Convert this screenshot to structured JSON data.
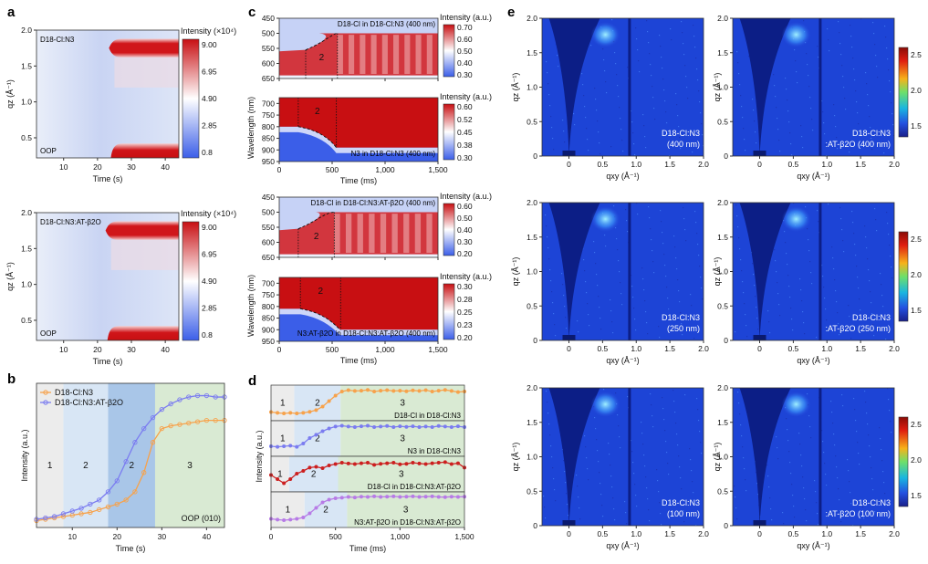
{
  "panel_labels": {
    "a": "a",
    "b": "b",
    "c": "c",
    "d": "d",
    "e": "e"
  },
  "colors": {
    "orange": "#f7a24b",
    "purple": "#7b7cf0",
    "red": "#cc1f1f",
    "violet": "#b77be6",
    "region1": "#ececec",
    "region2": "#d8e6f5",
    "region2b": "#a9c6e8",
    "region3": "#d9ead3"
  },
  "chart_data": [
    {
      "id": "a-top",
      "type": "heatmap",
      "label": "D18-Cl:N3",
      "corner_label": "OOP",
      "xlabel": "Time (s)",
      "ylabel": "q_z (Å⁻¹)",
      "xlim": [
        2,
        44
      ],
      "ylim": [
        0.22,
        2.0
      ],
      "xticks": [
        10,
        20,
        30,
        40
      ],
      "yticks": [
        0.5,
        1.0,
        1.5,
        2.0
      ],
      "colorbar": {
        "title": "Intensity (×10⁴)",
        "ticks": [
          "9.00",
          "6.95",
          "4.90",
          "2.85",
          "0.8"
        ],
        "range": [
          0.8,
          9.0
        ]
      },
      "features": [
        {
          "q_center": 1.75,
          "onset_s": 25
        },
        {
          "q_center": 0.3,
          "onset_s": 25
        }
      ]
    },
    {
      "id": "a-bottom",
      "type": "heatmap",
      "label": "D18-Cl:N3:AT-β2O",
      "corner_label": "OOP",
      "xlabel": "Time (s)",
      "ylabel": "q_z (Å⁻¹)",
      "xlim": [
        2,
        44
      ],
      "ylim": [
        0.22,
        2.0
      ],
      "xticks": [
        10,
        20,
        30,
        40
      ],
      "yticks": [
        0.5,
        1.0,
        1.5,
        2.0
      ],
      "colorbar": {
        "title": "Intensity (×10⁴)",
        "ticks": [
          "9.00",
          "6.95",
          "4.90",
          "2.85",
          "0.8"
        ],
        "range": [
          0.8,
          9.0
        ]
      },
      "features": [
        {
          "q_center": 1.75,
          "onset_s": 24
        },
        {
          "q_center": 0.3,
          "onset_s": 24
        }
      ]
    },
    {
      "id": "b",
      "type": "line",
      "xlabel": "Time (s)",
      "ylabel": "Intensity (a.u.)",
      "xlim": [
        2,
        44
      ],
      "xticks": [
        10,
        20,
        30,
        40
      ],
      "corner_label": "OOP (010)",
      "regions": [
        {
          "label": "1",
          "x": [
            2,
            8
          ]
        },
        {
          "label": "2",
          "x": [
            8,
            18
          ]
        },
        {
          "label": "2",
          "x": [
            18,
            28.5
          ]
        },
        {
          "label": "3",
          "x": [
            28.5,
            44
          ]
        }
      ],
      "series": [
        {
          "name": "D18-Cl:N3",
          "color": "#f7a24b",
          "x": [
            2,
            4,
            6,
            8,
            10,
            12,
            14,
            16,
            18,
            20,
            22,
            24,
            26,
            28,
            30,
            32,
            34,
            36,
            38,
            40,
            42,
            44
          ],
          "y": [
            0.05,
            0.06,
            0.07,
            0.08,
            0.09,
            0.1,
            0.11,
            0.13,
            0.15,
            0.17,
            0.2,
            0.26,
            0.4,
            0.62,
            0.72,
            0.74,
            0.75,
            0.76,
            0.77,
            0.78,
            0.78,
            0.78
          ]
        },
        {
          "name": "D18-Cl:N3:AT-β2O",
          "color": "#7b7cf0",
          "x": [
            2,
            4,
            6,
            8,
            10,
            12,
            14,
            16,
            18,
            20,
            22,
            24,
            26,
            28,
            30,
            32,
            34,
            36,
            38,
            40,
            42,
            44
          ],
          "y": [
            0.06,
            0.07,
            0.08,
            0.1,
            0.12,
            0.14,
            0.17,
            0.2,
            0.26,
            0.34,
            0.48,
            0.62,
            0.72,
            0.8,
            0.86,
            0.9,
            0.93,
            0.95,
            0.96,
            0.96,
            0.95,
            0.95
          ]
        }
      ]
    },
    {
      "id": "c1",
      "type": "heatmap",
      "label": "D18-Cl in D18-Cl:N3 (400 nm)",
      "region_label": "2",
      "xlim": [
        0,
        1500
      ],
      "ylim": [
        450,
        650
      ],
      "yticks": [
        450,
        500,
        550,
        600,
        650
      ],
      "colorbar": {
        "title": "Intensity (a.u.)",
        "ticks": [
          "0.70",
          "0.60",
          "0.50",
          "0.40",
          "0.30"
        ],
        "range": [
          0.3,
          0.7
        ]
      }
    },
    {
      "id": "c2",
      "type": "heatmap",
      "label": "N3 in D18-Cl:N3 (400 nm)",
      "region_label": "2",
      "xlabel": "Time (ms)",
      "ylabel": "Wavelength (nm)",
      "xlim": [
        0,
        1500
      ],
      "ylim": [
        675,
        950
      ],
      "xticks": [
        0,
        500,
        1000,
        1500
      ],
      "xtick_labels": [
        "0",
        "500",
        "1,000",
        "1,500"
      ],
      "yticks": [
        700,
        750,
        800,
        850,
        900,
        950
      ],
      "colorbar": {
        "title": "Intensity (a.u.)",
        "ticks": [
          "0.60",
          "0.52",
          "0.45",
          "0.38",
          "0.30"
        ],
        "range": [
          0.3,
          0.6
        ]
      }
    },
    {
      "id": "c3",
      "type": "heatmap",
      "label": "D18-Cl in D18-Cl:N3:AT-β2O (400 nm)",
      "region_label": "2",
      "xlim": [
        0,
        1500
      ],
      "ylim": [
        450,
        650
      ],
      "yticks": [
        450,
        500,
        550,
        600,
        650
      ],
      "colorbar": {
        "title": "Intensity (a.u.)",
        "ticks": [
          "0.60",
          "0.50",
          "0.40",
          "0.30",
          "0.20"
        ],
        "range": [
          0.2,
          0.6
        ]
      }
    },
    {
      "id": "c4",
      "type": "heatmap",
      "label": "N3:AT-β2O in D18-Cl:N3:AT-β2O (400 nm)",
      "region_label": "2",
      "xlabel": "Time (ms)",
      "ylabel": "Wavelength (nm)",
      "xlim": [
        0,
        1500
      ],
      "ylim": [
        675,
        950
      ],
      "xticks": [
        0,
        500,
        1000,
        1500
      ],
      "xtick_labels": [
        "0",
        "500",
        "1,000",
        "1,500"
      ],
      "yticks": [
        700,
        750,
        800,
        850,
        900,
        950
      ],
      "colorbar": {
        "title": "Intensity (a.u.)",
        "ticks": [
          "0.30",
          "0.28",
          "0.25",
          "0.23",
          "0.20"
        ],
        "range": [
          0.2,
          0.3
        ]
      }
    },
    {
      "id": "d",
      "type": "line",
      "xlabel": "Time (ms)",
      "ylabel": "Intensity (a.u.)",
      "xlim": [
        0,
        1500
      ],
      "xticks": [
        0,
        500,
        1000,
        1500
      ],
      "xtick_labels": [
        "0",
        "500",
        "1,000",
        "1,500"
      ],
      "series": [
        {
          "name": "D18-Cl in D18-Cl:N3",
          "color": "#f7a24b",
          "regions": [
            {
              "label": "1",
              "x": [
                0,
                180
              ]
            },
            {
              "label": "2",
              "x": [
                180,
                540
              ]
            },
            {
              "label": "3",
              "x": [
                540,
                1500
              ]
            }
          ],
          "x": [
            0,
            50,
            100,
            150,
            200,
            250,
            300,
            350,
            400,
            450,
            500,
            550,
            600,
            650,
            700,
            750,
            800,
            850,
            900,
            950,
            1000,
            1050,
            1100,
            1150,
            1200,
            1250,
            1300,
            1350,
            1400,
            1450,
            1500
          ],
          "y": [
            0.15,
            0.12,
            0.1,
            0.12,
            0.1,
            0.12,
            0.16,
            0.22,
            0.35,
            0.55,
            0.75,
            0.9,
            0.95,
            0.92,
            0.93,
            0.96,
            0.9,
            0.93,
            0.95,
            0.92,
            0.93,
            0.91,
            0.94,
            0.92,
            0.95,
            0.9,
            0.93,
            0.96,
            0.92,
            0.88,
            0.9
          ]
        },
        {
          "name": "N3 in D18-Cl:N3",
          "color": "#7b7cf0",
          "regions": [
            {
              "label": "1",
              "x": [
                0,
                180
              ]
            },
            {
              "label": "2",
              "x": [
                180,
                540
              ]
            },
            {
              "label": "3",
              "x": [
                540,
                1500
              ]
            }
          ],
          "x": [
            0,
            50,
            100,
            150,
            200,
            250,
            300,
            350,
            400,
            450,
            500,
            550,
            600,
            650,
            700,
            750,
            800,
            850,
            900,
            950,
            1000,
            1050,
            1100,
            1150,
            1200,
            1250,
            1300,
            1350,
            1400,
            1450,
            1500
          ],
          "y": [
            0.2,
            0.18,
            0.2,
            0.22,
            0.18,
            0.3,
            0.5,
            0.62,
            0.75,
            0.85,
            0.92,
            0.95,
            0.92,
            0.9,
            0.93,
            0.95,
            0.9,
            0.92,
            0.94,
            0.9,
            0.93,
            0.91,
            0.93,
            0.9,
            0.92,
            0.9,
            0.94,
            0.92,
            0.9,
            0.93,
            0.9
          ]
        },
        {
          "name": "D18-Cl in D18-Cl:N3:AT-β2O",
          "color": "#cc1f1f",
          "regions": [
            {
              "label": "1",
              "x": [
                0,
                140
              ]
            },
            {
              "label": "2",
              "x": [
                140,
                520
              ]
            },
            {
              "label": "3",
              "x": [
                520,
                1500
              ]
            }
          ],
          "x": [
            0,
            50,
            100,
            150,
            200,
            250,
            300,
            350,
            400,
            450,
            500,
            550,
            600,
            650,
            700,
            750,
            800,
            850,
            900,
            950,
            1000,
            1050,
            1100,
            1150,
            1200,
            1250,
            1300,
            1350,
            1400,
            1450,
            1500
          ],
          "y": [
            0.45,
            0.3,
            0.15,
            0.3,
            0.5,
            0.6,
            0.72,
            0.75,
            0.7,
            0.8,
            0.85,
            0.9,
            0.87,
            0.85,
            0.88,
            0.9,
            0.82,
            0.86,
            0.88,
            0.9,
            0.84,
            0.86,
            0.9,
            0.87,
            0.85,
            0.88,
            0.9,
            0.92,
            0.85,
            0.88,
            0.72
          ]
        },
        {
          "name": "N3:AT-β2O in D18-Cl:N3:AT-β2O",
          "color": "#b77be6",
          "regions": [
            {
              "label": "1",
              "x": [
                0,
                260
              ]
            },
            {
              "label": "2",
              "x": [
                260,
                590
              ]
            },
            {
              "label": "3",
              "x": [
                590,
                1500
              ]
            }
          ],
          "x": [
            0,
            50,
            100,
            150,
            200,
            250,
            300,
            350,
            400,
            450,
            500,
            550,
            600,
            650,
            700,
            750,
            800,
            850,
            900,
            950,
            1000,
            1050,
            1100,
            1150,
            1200,
            1250,
            1300,
            1350,
            1400,
            1450,
            1500
          ],
          "y": [
            0.15,
            0.12,
            0.1,
            0.12,
            0.15,
            0.2,
            0.35,
            0.55,
            0.75,
            0.85,
            0.9,
            0.92,
            0.95,
            0.93,
            0.96,
            0.95,
            0.97,
            0.95,
            0.96,
            0.97,
            0.95,
            0.96,
            0.97,
            0.95,
            0.96,
            0.97,
            0.95,
            0.94,
            0.96,
            0.95,
            0.96
          ]
        }
      ]
    },
    {
      "id": "e",
      "type": "heatmap",
      "xlabel": "q_xy (Å⁻¹)",
      "ylabel": "q_z (Å⁻¹)",
      "xlim": [
        -0.4,
        2.0
      ],
      "ylim": [
        0,
        2.0
      ],
      "xticks": [
        0,
        0.5,
        1.0,
        1.5,
        2.0
      ],
      "xtick_labels": [
        "0",
        "0.5",
        "1.0",
        "1.5",
        "2.0"
      ],
      "yticks": [
        0,
        0.5,
        1.0,
        1.5,
        2.0
      ],
      "ytick_labels": [
        "0",
        "0.5",
        "1.0",
        "1.5",
        "2.0"
      ],
      "colorbar": {
        "ticks": [
          "2.5",
          "2.0",
          "1.5"
        ]
      },
      "images": [
        {
          "row": 0,
          "col": 0,
          "line1": "D18-Cl:N3",
          "line2": "(400 nm)"
        },
        {
          "row": 0,
          "col": 1,
          "line1": "D18-Cl:N3",
          "line2": ":AT-β2O (400 nm)"
        },
        {
          "row": 1,
          "col": 0,
          "line1": "D18-Cl:N3",
          "line2": "(250 nm)"
        },
        {
          "row": 1,
          "col": 1,
          "line1": "D18-Cl:N3",
          "line2": ":AT-β2O (250 nm)"
        },
        {
          "row": 2,
          "col": 0,
          "line1": "D18-Cl:N3",
          "line2": "(100 nm)"
        },
        {
          "row": 2,
          "col": 1,
          "line1": "D18-Cl:N3",
          "line2": ":AT-β2O (100 nm)"
        }
      ]
    }
  ]
}
